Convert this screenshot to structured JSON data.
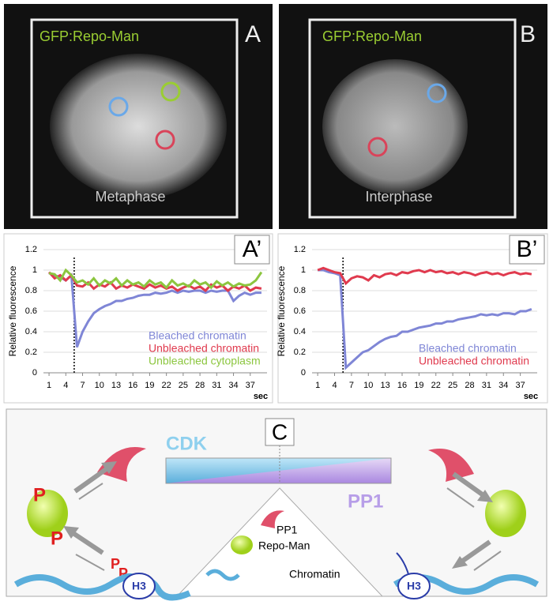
{
  "panels": [
    {
      "label": "A",
      "title": "GFP:Repo-Man",
      "stage": "Metaphase"
    },
    {
      "label": "B",
      "title": "GFP:Repo-Man",
      "stage": "Interphase"
    }
  ],
  "chart_data": [
    {
      "type": "line",
      "panel_label": "A’",
      "ylabel": "Relative fluorescence",
      "xlabel": "sec",
      "xlim": [
        0,
        40
      ],
      "ylim": [
        0,
        1.2
      ],
      "xticks": [
        1,
        4,
        7,
        10,
        13,
        16,
        19,
        22,
        25,
        28,
        31,
        34,
        37
      ],
      "yticks": [
        0,
        0.2,
        0.4,
        0.6,
        0.8,
        1,
        1.2
      ],
      "grid": true,
      "vline": 5.5,
      "x": [
        1,
        2,
        3,
        4,
        5,
        6,
        7,
        8,
        9,
        10,
        11,
        12,
        13,
        14,
        15,
        16,
        17,
        18,
        19,
        20,
        21,
        22,
        23,
        24,
        25,
        26,
        27,
        28,
        29,
        30,
        31,
        32,
        33,
        34,
        35,
        36,
        37,
        38,
        39
      ],
      "series": [
        {
          "name": "Bleached chromatin",
          "color": "#7f86d6",
          "values": [
            0.97,
            0.95,
            0.93,
            0.9,
            0.95,
            0.25,
            0.4,
            0.5,
            0.58,
            0.62,
            0.65,
            0.67,
            0.7,
            0.7,
            0.72,
            0.73,
            0.75,
            0.76,
            0.76,
            0.78,
            0.77,
            0.78,
            0.8,
            0.78,
            0.8,
            0.79,
            0.8,
            0.8,
            0.78,
            0.8,
            0.79,
            0.8,
            0.8,
            0.7,
            0.75,
            0.78,
            0.76,
            0.78,
            0.78
          ]
        },
        {
          "name": "Unbleached chromatin",
          "color": "#e03a4e",
          "values": [
            0.98,
            0.92,
            0.95,
            0.9,
            0.95,
            0.85,
            0.84,
            0.88,
            0.82,
            0.86,
            0.84,
            0.88,
            0.82,
            0.85,
            0.83,
            0.86,
            0.84,
            0.82,
            0.86,
            0.83,
            0.85,
            0.82,
            0.84,
            0.8,
            0.83,
            0.85,
            0.82,
            0.84,
            0.8,
            0.86,
            0.83,
            0.85,
            0.8,
            0.84,
            0.82,
            0.85,
            0.8,
            0.83,
            0.82
          ]
        },
        {
          "name": "Unbleached cytoplasm",
          "color": "#8cc63f",
          "values": [
            0.97,
            0.96,
            0.9,
            1.0,
            0.95,
            0.88,
            0.9,
            0.86,
            0.92,
            0.85,
            0.9,
            0.87,
            0.92,
            0.85,
            0.9,
            0.86,
            0.88,
            0.84,
            0.9,
            0.86,
            0.88,
            0.83,
            0.9,
            0.85,
            0.87,
            0.84,
            0.9,
            0.86,
            0.88,
            0.83,
            0.89,
            0.85,
            0.88,
            0.84,
            0.87,
            0.85,
            0.86,
            0.9,
            0.98
          ]
        }
      ]
    },
    {
      "type": "line",
      "panel_label": "B’",
      "ylabel": "Relative fluorescence",
      "xlabel": "sec",
      "xlim": [
        0,
        40
      ],
      "ylim": [
        0,
        1.2
      ],
      "xticks": [
        1,
        4,
        7,
        10,
        13,
        16,
        19,
        22,
        25,
        28,
        31,
        34,
        37
      ],
      "yticks": [
        0,
        0.2,
        0.4,
        0.6,
        0.8,
        1,
        1.2
      ],
      "grid": true,
      "vline": 5.5,
      "x": [
        1,
        2,
        3,
        4,
        5,
        6,
        7,
        8,
        9,
        10,
        11,
        12,
        13,
        14,
        15,
        16,
        17,
        18,
        19,
        20,
        21,
        22,
        23,
        24,
        25,
        26,
        27,
        28,
        29,
        30,
        31,
        32,
        33,
        34,
        35,
        36,
        37,
        38,
        39
      ],
      "series": [
        {
          "name": "Bleached chromatin",
          "color": "#7f86d6",
          "values": [
            1.0,
            1.0,
            0.98,
            0.97,
            0.95,
            0.05,
            0.1,
            0.15,
            0.2,
            0.22,
            0.26,
            0.3,
            0.33,
            0.35,
            0.36,
            0.4,
            0.4,
            0.42,
            0.44,
            0.45,
            0.46,
            0.48,
            0.48,
            0.5,
            0.5,
            0.52,
            0.53,
            0.54,
            0.55,
            0.57,
            0.56,
            0.57,
            0.56,
            0.58,
            0.58,
            0.57,
            0.6,
            0.6,
            0.62
          ]
        },
        {
          "name": "Unbleached chromatin",
          "color": "#e03a4e",
          "values": [
            1.0,
            1.02,
            1.0,
            0.98,
            0.97,
            0.87,
            0.92,
            0.94,
            0.93,
            0.9,
            0.95,
            0.93,
            0.96,
            0.97,
            0.95,
            0.98,
            0.97,
            0.99,
            1.0,
            0.98,
            1.0,
            0.98,
            0.99,
            0.97,
            0.98,
            0.96,
            0.98,
            0.97,
            0.95,
            0.97,
            0.98,
            0.96,
            0.97,
            0.95,
            0.97,
            0.98,
            0.96,
            0.97,
            0.96
          ]
        }
      ]
    }
  ],
  "diagram": {
    "label": "C",
    "cdk": "CDK",
    "pp1": "PP1",
    "phospho": [
      "P",
      "P",
      "P",
      "P"
    ],
    "histone": [
      "H3",
      "H3"
    ],
    "legend": [
      "PP1",
      "Repo-Man",
      "Chromatin"
    ]
  }
}
